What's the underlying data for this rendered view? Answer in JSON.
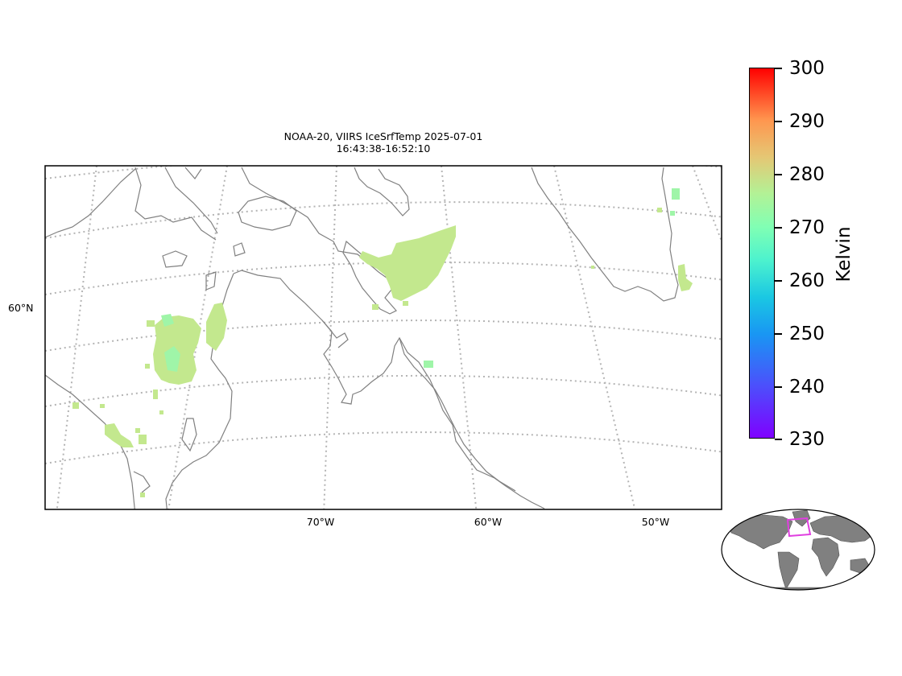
{
  "title": {
    "line1": "NOAA-20, VIIRS IceSrfTemp 2025-07-01",
    "line2": "16:43:38-16:52:10"
  },
  "lon_labels": [
    "70°W",
    "60°W",
    "50°W"
  ],
  "lat_labels": [
    "60°N"
  ],
  "colorbar": {
    "label": "Kelvin",
    "ticks": [
      "300",
      "290",
      "280",
      "270",
      "260",
      "250",
      "240",
      "230"
    ],
    "colormap": "rainbow",
    "range": [
      230,
      300
    ]
  },
  "colors": {
    "coastline": "#808080",
    "gridline": "#b4b4b4",
    "inset_land": "#808080",
    "inset_box": "#e040e0",
    "data_dominant": "#c3e88e",
    "data_cold": "#9ff5a8"
  }
}
